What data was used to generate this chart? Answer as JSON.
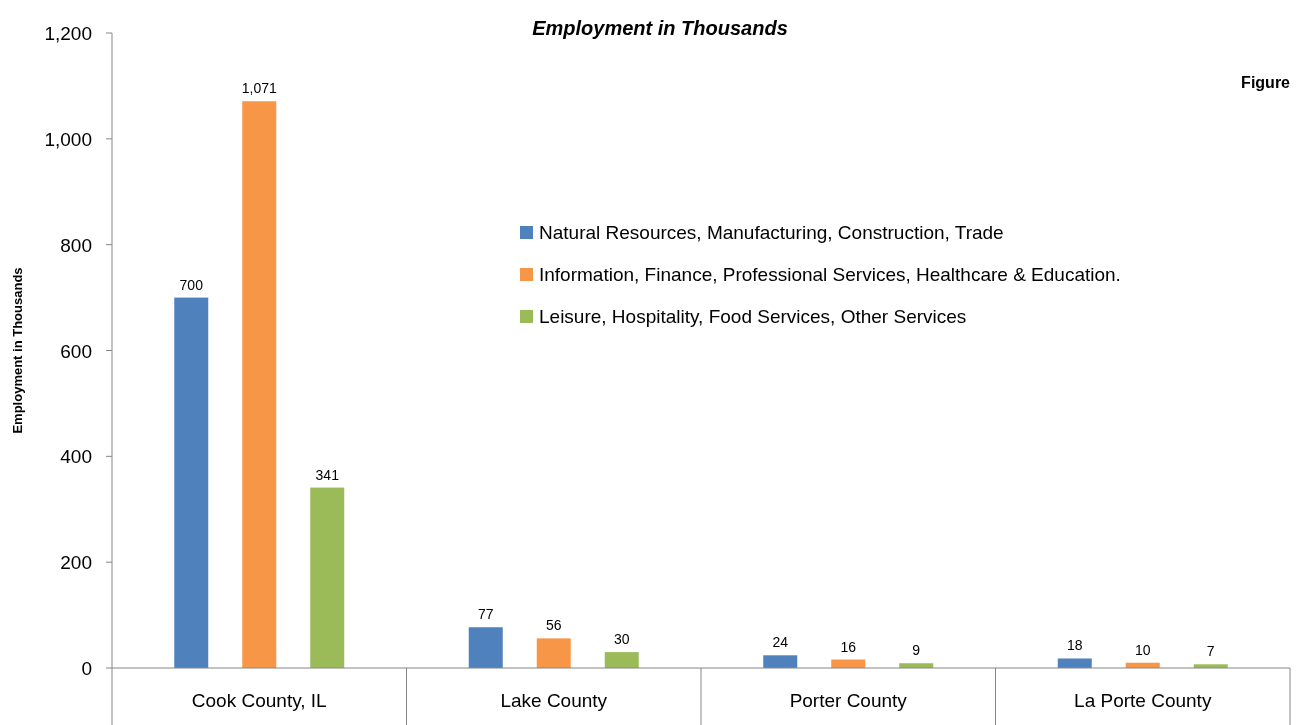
{
  "chart_data": {
    "type": "bar",
    "title": "Employment in Thousands",
    "ylabel": "Employment in Thousands",
    "categories": [
      "Cook County,  IL",
      "Lake County",
      "Porter County",
      "La Porte County"
    ],
    "series": [
      {
        "name": "Natural Resources, Manufacturing, Construction, Trade",
        "color": "#4f81bd",
        "values": [
          700,
          77,
          24,
          18
        ],
        "value_labels": [
          "700",
          "77",
          "24",
          "18"
        ]
      },
      {
        "name": "Information, Finance, Professional Services, Healthcare & Education.",
        "color": "#f79646",
        "values": [
          1071,
          56,
          16,
          10
        ],
        "value_labels": [
          "1,071",
          "56",
          "16",
          "10"
        ]
      },
      {
        "name": "Leisure, Hospitality, Food Services, Other Services",
        "color": "#9bbb59",
        "values": [
          341,
          30,
          9,
          7
        ],
        "value_labels": [
          "341",
          "30",
          "9",
          "7"
        ]
      }
    ],
    "ylim": [
      0,
      1200
    ],
    "yticks": [
      {
        "value": 0,
        "label": "0"
      },
      {
        "value": 200,
        "label": "200"
      },
      {
        "value": 400,
        "label": "400"
      },
      {
        "value": 600,
        "label": "600"
      },
      {
        "value": 800,
        "label": "800"
      },
      {
        "value": 1000,
        "label": "1,000"
      },
      {
        "value": 1200,
        "label": "1,200"
      }
    ],
    "legend": "top right",
    "grid": false,
    "annotations": [
      "Figure"
    ]
  }
}
